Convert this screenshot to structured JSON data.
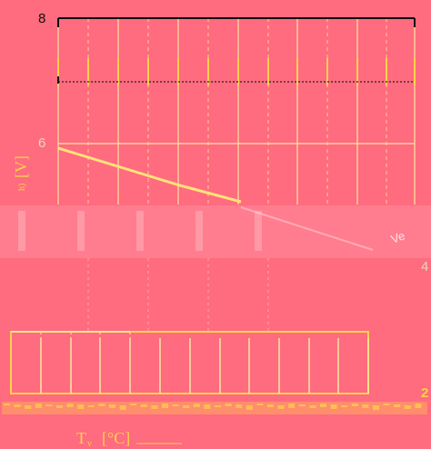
{
  "chart_data": {
    "type": "line",
    "title": "",
    "ylabel": "[V]",
    "ylabel_prefix": "h)",
    "xlabel": "T",
    "xlabel_sub": "v",
    "xlabel_unit": "[°C]",
    "ylim": [
      2,
      8
    ],
    "y_ticks": [
      "8",
      "6",
      "4",
      "2"
    ],
    "grid": true,
    "annotation": "Ve",
    "series": [
      {
        "x": [
          0,
          1,
          2,
          3
        ],
        "y": [
          5.95,
          5.55,
          5.15,
          4.8
        ]
      }
    ]
  },
  "colors": {
    "background": "#ff6b7f",
    "grid": "#ffe7a0",
    "line": "#ffe27a",
    "frame": "#111111",
    "label": "#ffd24a"
  }
}
